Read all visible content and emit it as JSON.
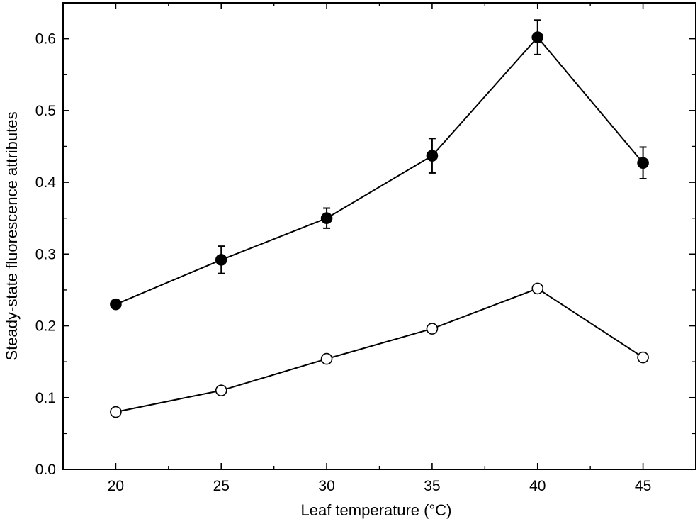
{
  "chart_data": {
    "type": "line",
    "title": "",
    "xlabel": "Leaf temperature (°C)",
    "ylabel": "Steady-state fluorescence attributes",
    "xlim": [
      17.5,
      47.5
    ],
    "ylim": [
      0.0,
      0.65
    ],
    "x": [
      20,
      25,
      30,
      35,
      40,
      45
    ],
    "xticks": [
      "20",
      "25",
      "30",
      "35",
      "40",
      "45"
    ],
    "yticks": [
      "0.0",
      "0.1",
      "0.2",
      "0.3",
      "0.4",
      "0.5",
      "0.6"
    ],
    "grid": false,
    "legend": "none",
    "series": [
      {
        "marker": "filled-circle",
        "color": "#000000",
        "values": [
          0.23,
          0.292,
          0.35,
          0.437,
          0.602,
          0.427
        ],
        "errors": [
          0.005,
          0.019,
          0.014,
          0.024,
          0.024,
          0.022
        ]
      },
      {
        "marker": "open-circle",
        "color": "#000000",
        "values": [
          0.08,
          0.11,
          0.154,
          0.196,
          0.252,
          0.156
        ],
        "errors": [
          0,
          0,
          0,
          0,
          0,
          0
        ]
      }
    ]
  }
}
